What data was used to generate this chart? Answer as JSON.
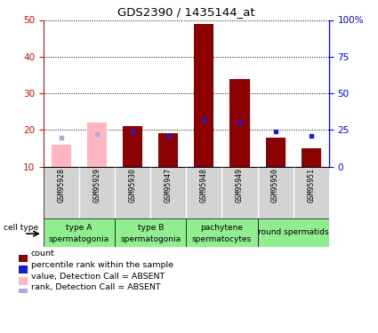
{
  "title": "GDS2390 / 1435144_at",
  "samples": [
    "GSM95928",
    "GSM95929",
    "GSM95930",
    "GSM95947",
    "GSM95948",
    "GSM95949",
    "GSM95950",
    "GSM95951"
  ],
  "count_values": [
    16,
    22,
    21,
    19,
    49,
    34,
    18,
    15
  ],
  "rank_values": [
    20,
    22,
    24,
    21,
    32,
    30,
    24,
    21
  ],
  "absent_flags": [
    true,
    true,
    false,
    false,
    false,
    false,
    false,
    false
  ],
  "ylim_left": [
    10,
    50
  ],
  "ylim_right": [
    0,
    100
  ],
  "yticks_left": [
    10,
    20,
    30,
    40,
    50
  ],
  "yticks_right": [
    0,
    25,
    50,
    75,
    100
  ],
  "yticklabels_right": [
    "0",
    "25",
    "50",
    "75",
    "100%"
  ],
  "bar_color_present": "#8B0000",
  "bar_color_absent": "#FFB6C1",
  "rank_color_present": "#1C1CD4",
  "rank_color_absent": "#AAAADD",
  "cell_groups": [
    {
      "label": "type A\nspermatogonia",
      "samples": [
        "GSM95928",
        "GSM95929"
      ],
      "color": "#90EE90"
    },
    {
      "label": "type B\nspermatogonia",
      "samples": [
        "GSM95930",
        "GSM95947"
      ],
      "color": "#90EE90"
    },
    {
      "label": "pachytene\nspermatocytes",
      "samples": [
        "GSM95948",
        "GSM95949"
      ],
      "color": "#90EE90"
    },
    {
      "label": "round spermatids",
      "samples": [
        "GSM95950",
        "GSM95951"
      ],
      "color": "#90EE90"
    }
  ],
  "legend_entries": [
    {
      "label": "count",
      "color": "#8B0000"
    },
    {
      "label": "percentile rank within the sample",
      "color": "#1C1CD4"
    },
    {
      "label": "value, Detection Call = ABSENT",
      "color": "#FFB6C1"
    },
    {
      "label": "rank, Detection Call = ABSENT",
      "color": "#AAAADD"
    }
  ]
}
